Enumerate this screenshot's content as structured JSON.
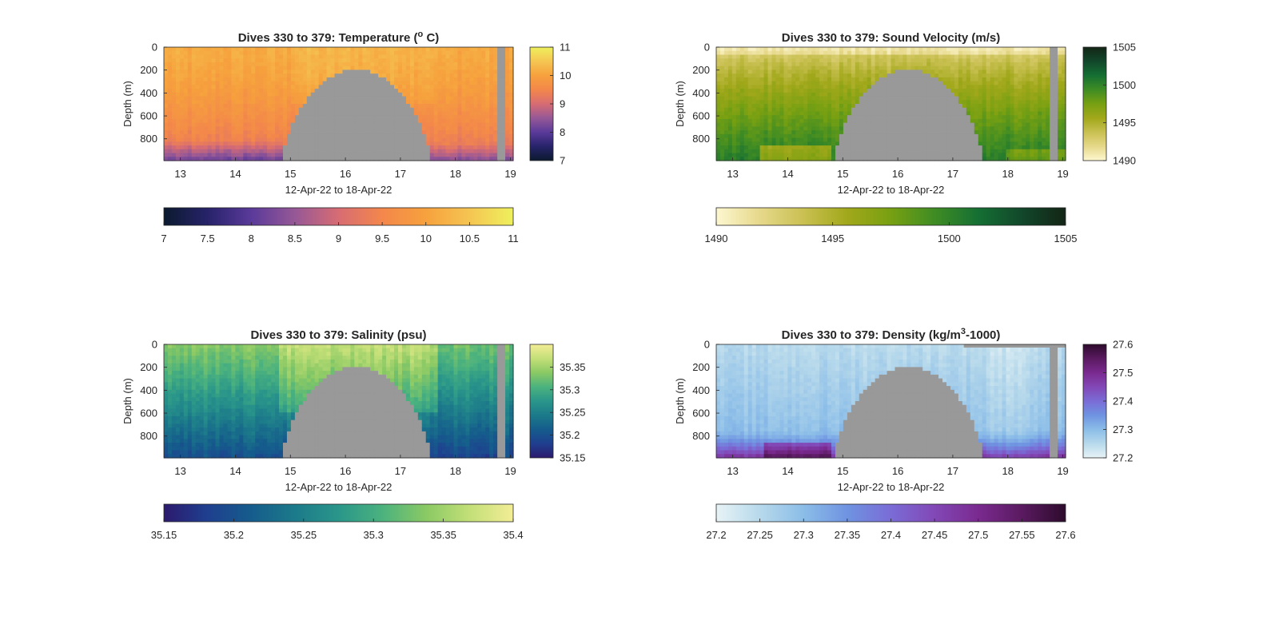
{
  "chart_data": [
    {
      "type": "heatmap",
      "title": "Dives 330 to 379: Temperature (° C)",
      "title_parts": [
        "Dives 330 to 379: Temperature (",
        "o",
        " C)"
      ],
      "xlabel": "12-Apr-22 to 18-Apr-22",
      "ylabel": "Depth (m)",
      "xlim": [
        12.7,
        19.05
      ],
      "ylim": [
        990,
        0
      ],
      "xticks": [
        "13",
        "14",
        "15",
        "16",
        "17",
        "18",
        "19"
      ],
      "yticks": [
        "0",
        "200",
        "400",
        "600",
        "800"
      ],
      "colorbar": {
        "range": [
          7,
          11
        ],
        "ticks_vertical": [
          "7",
          "8",
          "9",
          "10",
          "11"
        ],
        "ticks_horizontal": [
          "7",
          "7.5",
          "8",
          "8.5",
          "9",
          "9.5",
          "10",
          "10.5",
          "11"
        ],
        "colormap": [
          "#0b1a2e",
          "#27236a",
          "#5a3a9a",
          "#965896",
          "#d76c73",
          "#f3874b",
          "#f6a13d",
          "#f5c552",
          "#eef05d"
        ]
      },
      "missing_color": "#999999"
    },
    {
      "type": "heatmap",
      "title": "Dives 330 to 379: Sound Velocity (m/s)",
      "xlabel": "12-Apr-22 to 18-Apr-22",
      "ylabel": "Depth (m)",
      "xlim": [
        12.7,
        19.05
      ],
      "ylim": [
        990,
        0
      ],
      "xticks": [
        "13",
        "14",
        "15",
        "16",
        "17",
        "18",
        "19"
      ],
      "yticks": [
        "0",
        "200",
        "400",
        "600",
        "800"
      ],
      "colorbar": {
        "range": [
          1490,
          1505
        ],
        "ticks_vertical": [
          "1490",
          "1495",
          "1500",
          "1505"
        ],
        "ticks_horizontal": [
          "1490",
          "1495",
          "1500",
          "1505"
        ],
        "colormap": [
          "#fdf7d0",
          "#e6d88a",
          "#c9c052",
          "#a1a81a",
          "#77a012",
          "#3f8c24",
          "#156f33",
          "#12472b",
          "#132516"
        ]
      },
      "missing_color": "#999999"
    },
    {
      "type": "heatmap",
      "title": "Dives 330 to 379: Salinity (psu)",
      "xlabel": "12-Apr-22 to 18-Apr-22",
      "ylabel": "Depth (m)",
      "xlim": [
        12.7,
        19.05
      ],
      "ylim": [
        990,
        0
      ],
      "xticks": [
        "13",
        "14",
        "15",
        "16",
        "17",
        "18",
        "19"
      ],
      "yticks": [
        "0",
        "200",
        "400",
        "600",
        "800"
      ],
      "colorbar": {
        "range": [
          35.15,
          35.4
        ],
        "ticks_vertical": [
          "35.15",
          "35.2",
          "35.25",
          "35.3",
          "35.35"
        ],
        "ticks_horizontal": [
          "35.15",
          "35.2",
          "35.25",
          "35.3",
          "35.35",
          "35.4"
        ],
        "colormap": [
          "#2c1a6d",
          "#1f3f8f",
          "#155c8c",
          "#1c7a8a",
          "#2a968a",
          "#4bb27e",
          "#8ac964",
          "#c3df78",
          "#f3ed96"
        ]
      },
      "missing_color": "#999999"
    },
    {
      "type": "heatmap",
      "title": "Dives 330 to 379: Density (kg/m³-1000)",
      "title_parts": [
        "Dives 330 to 379: Density (kg/m",
        "3",
        "-1000)"
      ],
      "xlabel": "12-Apr-22 to 18-Apr-22",
      "ylabel": "Depth (m)",
      "xlim": [
        12.7,
        19.05
      ],
      "ylim": [
        990,
        0
      ],
      "xticks": [
        "13",
        "14",
        "15",
        "16",
        "17",
        "18",
        "19"
      ],
      "yticks": [
        "0",
        "200",
        "400",
        "600",
        "800"
      ],
      "colorbar": {
        "range": [
          27.2,
          27.6
        ],
        "ticks_vertical": [
          "27.2",
          "27.3",
          "27.4",
          "27.5",
          "27.6"
        ],
        "ticks_horizontal": [
          "27.2",
          "27.25",
          "27.3",
          "27.35",
          "27.4",
          "27.45",
          "27.5",
          "27.55",
          "27.6"
        ],
        "colormap": [
          "#e7f3f6",
          "#b7d9eb",
          "#8bbde8",
          "#6f93e1",
          "#7a6cd6",
          "#8248b6",
          "#7a2a8f",
          "#5a1a60",
          "#2d0b2c"
        ]
      },
      "missing_color": "#999999"
    }
  ]
}
